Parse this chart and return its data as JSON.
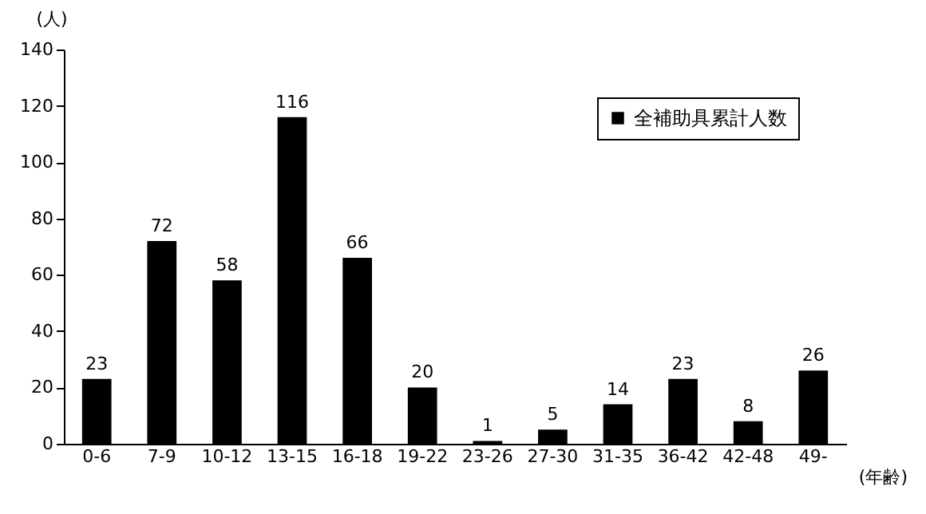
{
  "chart_data": {
    "type": "bar",
    "xlabel": "(年齢)",
    "ylabel": "(人)",
    "categories": [
      "0-6",
      "7-9",
      "10-12",
      "13-15",
      "16-18",
      "19-22",
      "23-26",
      "27-30",
      "31-35",
      "36-42",
      "42-48",
      "49-"
    ],
    "series": [
      {
        "name": "全補助具累計人数",
        "color": "#000000",
        "values": [
          23,
          72,
          58,
          116,
          66,
          20,
          1,
          5,
          14,
          23,
          8,
          26
        ]
      }
    ],
    "ylim": [
      0,
      140
    ],
    "yticks": [
      0,
      20,
      40,
      60,
      80,
      100,
      120,
      140
    ],
    "grid": false,
    "legend": "top right",
    "data_labels": true
  }
}
